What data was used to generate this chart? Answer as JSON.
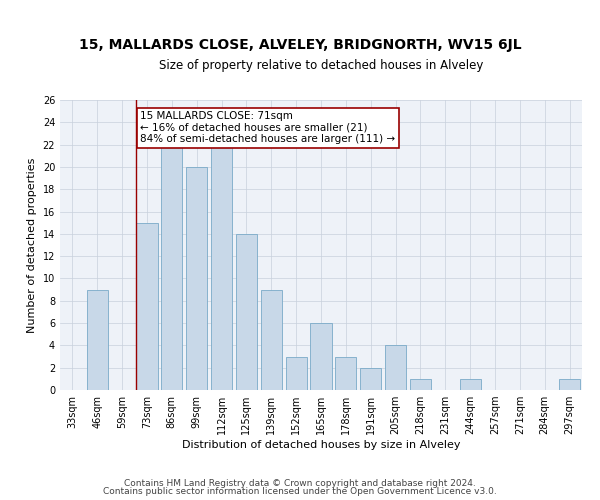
{
  "title": "15, MALLARDS CLOSE, ALVELEY, BRIDGNORTH, WV15 6JL",
  "subtitle": "Size of property relative to detached houses in Alveley",
  "xlabel": "Distribution of detached houses by size in Alveley",
  "ylabel": "Number of detached properties",
  "bar_color": "#c8d8e8",
  "bar_edge_color": "#7aaac8",
  "bar_linewidth": 0.6,
  "categories": [
    "33sqm",
    "46sqm",
    "59sqm",
    "73sqm",
    "86sqm",
    "99sqm",
    "112sqm",
    "125sqm",
    "139sqm",
    "152sqm",
    "165sqm",
    "178sqm",
    "191sqm",
    "205sqm",
    "218sqm",
    "231sqm",
    "244sqm",
    "257sqm",
    "271sqm",
    "284sqm",
    "297sqm"
  ],
  "values": [
    0,
    9,
    0,
    15,
    22,
    20,
    22,
    14,
    9,
    3,
    6,
    3,
    2,
    4,
    1,
    0,
    1,
    0,
    0,
    0,
    1
  ],
  "ylim": [
    0,
    26
  ],
  "yticks": [
    0,
    2,
    4,
    6,
    8,
    10,
    12,
    14,
    16,
    18,
    20,
    22,
    24,
    26
  ],
  "subject_line_label": "15 MALLARDS CLOSE: 71sqm",
  "annotation_smaller": "← 16% of detached houses are smaller (21)",
  "annotation_larger": "84% of semi-detached houses are larger (111) →",
  "annotation_box_color": "white",
  "annotation_box_edge_color": "#990000",
  "vline_color": "#990000",
  "vline_linewidth": 1.0,
  "grid_color": "#c8d0dc",
  "bg_color": "#eef2f8",
  "footer1": "Contains HM Land Registry data © Crown copyright and database right 2024.",
  "footer2": "Contains public sector information licensed under the Open Government Licence v3.0.",
  "title_fontsize": 10,
  "subtitle_fontsize": 8.5,
  "xlabel_fontsize": 8,
  "ylabel_fontsize": 8,
  "tick_fontsize": 7,
  "annotation_fontsize": 7.5,
  "footer_fontsize": 6.5
}
